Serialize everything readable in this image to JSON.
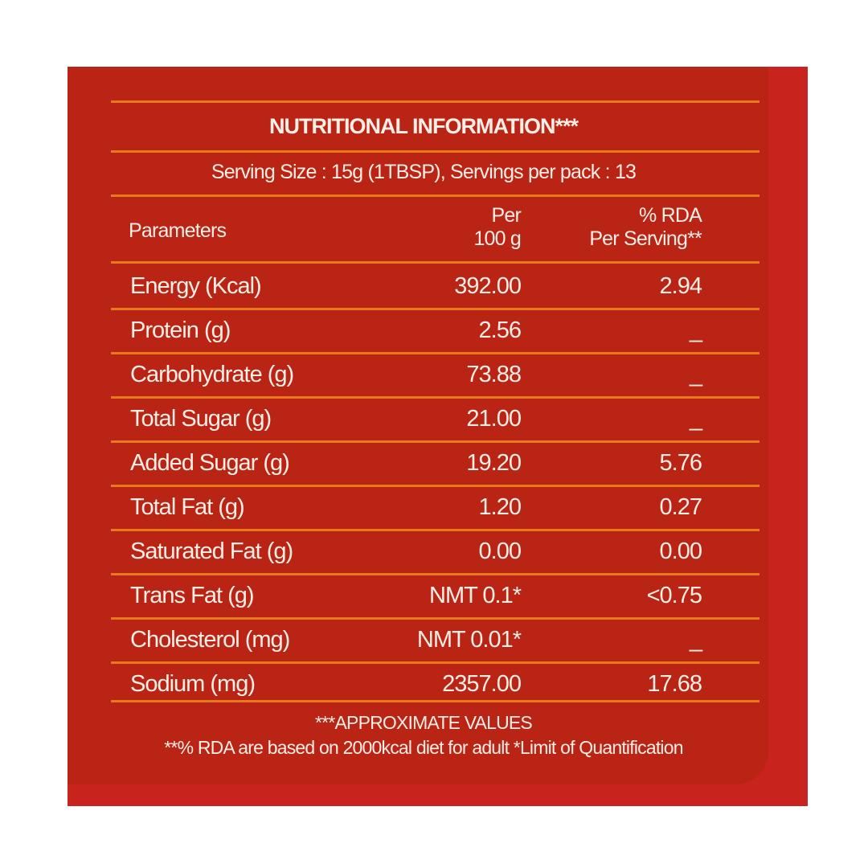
{
  "title": "NUTRITIONAL INFORMATION***",
  "serving": "Serving Size : 15g (1TBSP),  Servings per pack : 13",
  "headers": {
    "parameters": "Parameters",
    "per100_line1": "Per",
    "per100_line2": "100 g",
    "rda_line1": "% RDA",
    "rda_line2": "Per Serving**"
  },
  "rows": [
    {
      "label": "Energy (Kcal)",
      "per100": "392.00",
      "rda": "2.94"
    },
    {
      "label": "Protein (g)",
      "per100": "2.56",
      "rda": "_"
    },
    {
      "label": "Carbohydrate (g)",
      "per100": "73.88",
      "rda": "_"
    },
    {
      "label": "Total Sugar (g)",
      "per100": "21.00",
      "rda": "_"
    },
    {
      "label": "Added Sugar (g)",
      "per100": "19.20",
      "rda": "5.76"
    },
    {
      "label": "Total Fat (g)",
      "per100": "1.20",
      "rda": "0.27"
    },
    {
      "label": "Saturated Fat (g)",
      "per100": "0.00",
      "rda": "0.00"
    },
    {
      "label": "Trans Fat (g)",
      "per100": "NMT 0.1*",
      "rda": "<0.75"
    },
    {
      "label": "Cholesterol (mg)",
      "per100": "NMT 0.01*",
      "rda": "_"
    },
    {
      "label": "Sodium (mg)",
      "per100": "2357.00",
      "rda": "17.68"
    }
  ],
  "footnotes": {
    "line1": "***APPROXIMATE VALUES",
    "line2": "**% RDA are based on 2000kcal diet for adult *Limit of Quantification"
  },
  "colors": {
    "background": "#b92414",
    "outer": "#c9231e",
    "rule": "#e8791c",
    "text": "#fbeee6"
  }
}
